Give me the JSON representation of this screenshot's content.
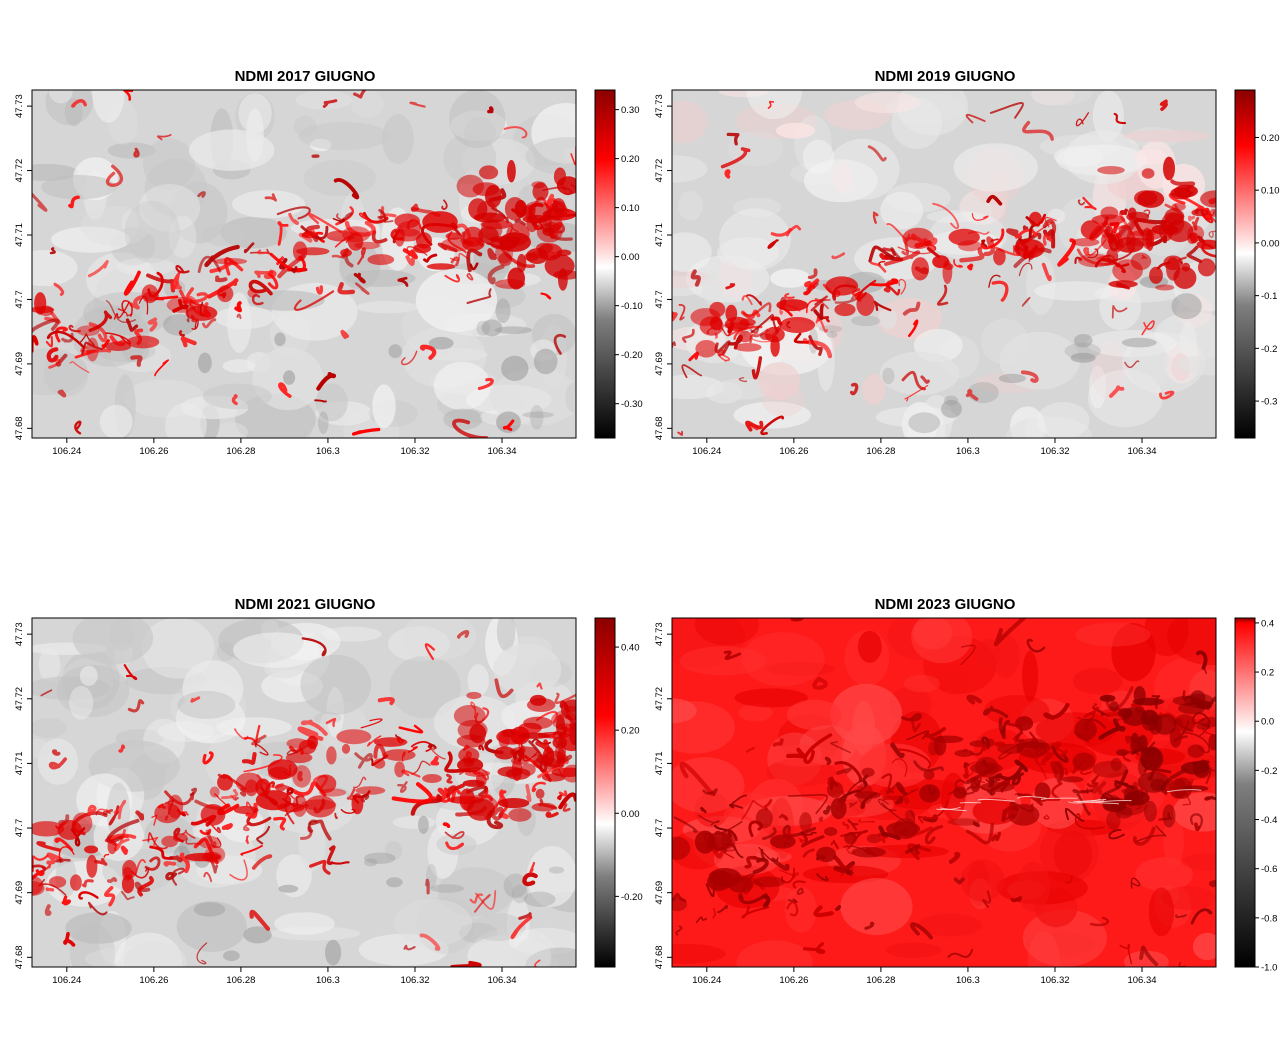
{
  "colors": {
    "scale": [
      "#000000",
      "#7f7f7f",
      "#ffffff",
      "#ff0000",
      "#8b0000"
    ],
    "frame": "#000000",
    "background": "#ffffff"
  },
  "chart_data": [
    {
      "type": "heatmap",
      "title": "NDMI 2017 GIUGNO",
      "xlabel": "",
      "ylabel": "",
      "xlim": [
        106.232,
        106.357
      ],
      "ylim": [
        47.6785,
        47.7325
      ],
      "x_ticks": [
        "106.24",
        "106.26",
        "106.28",
        "106.3",
        "106.32",
        "106.34"
      ],
      "y_ticks": [
        "47.68",
        "47.69",
        "47.7",
        "47.71",
        "47.72",
        "47.73"
      ],
      "legend": {
        "position": "right",
        "range": [
          -0.37,
          0.34
        ],
        "ticks": [
          "-0.30",
          "-0.20",
          "-0.10",
          "0.00",
          "0.10",
          "0.20",
          "0.30"
        ]
      },
      "pattern": "moderate"
    },
    {
      "type": "heatmap",
      "title": "NDMI 2019 GIUGNO",
      "xlabel": "",
      "ylabel": "",
      "xlim": [
        106.232,
        106.357
      ],
      "ylim": [
        47.6785,
        47.7325
      ],
      "x_ticks": [
        "106.24",
        "106.26",
        "106.28",
        "106.3",
        "106.32",
        "106.34"
      ],
      "y_ticks": [
        "47.68",
        "47.69",
        "47.7",
        "47.71",
        "47.72",
        "47.73"
      ],
      "legend": {
        "position": "right",
        "range": [
          -0.37,
          0.29
        ],
        "ticks": [
          "-0.3",
          "-0.2",
          "-0.1",
          "0.00",
          "0.10",
          "0.20"
        ]
      },
      "pattern": "moderate-pink"
    },
    {
      "type": "heatmap",
      "title": "NDMI 2021 GIUGNO",
      "xlabel": "",
      "ylabel": "",
      "xlim": [
        106.232,
        106.357
      ],
      "ylim": [
        47.6785,
        47.7325
      ],
      "x_ticks": [
        "106.24",
        "106.26",
        "106.28",
        "106.3",
        "106.32",
        "106.34"
      ],
      "y_ticks": [
        "47.68",
        "47.69",
        "47.7",
        "47.71",
        "47.72",
        "47.73"
      ],
      "legend": {
        "position": "right",
        "range": [
          -0.37,
          0.47
        ],
        "ticks": [
          "-0.20",
          "0.00",
          "0.20",
          "0.40"
        ]
      },
      "pattern": "wide"
    },
    {
      "type": "heatmap",
      "title": "NDMI 2023 GIUGNO",
      "xlabel": "",
      "ylabel": "",
      "xlim": [
        106.232,
        106.357
      ],
      "ylim": [
        47.6785,
        47.7325
      ],
      "x_ticks": [
        "106.24",
        "106.26",
        "106.28",
        "106.3",
        "106.32",
        "106.34"
      ],
      "y_ticks": [
        "47.68",
        "47.69",
        "47.7",
        "47.71",
        "47.72",
        "47.73"
      ],
      "legend": {
        "position": "right",
        "range": [
          -1.0,
          0.42
        ],
        "ticks": [
          "-1.0",
          "-0.8",
          "-0.6",
          "-0.4",
          "-0.2",
          "0.0",
          "0.2",
          "0.4"
        ]
      },
      "pattern": "all-red"
    }
  ]
}
